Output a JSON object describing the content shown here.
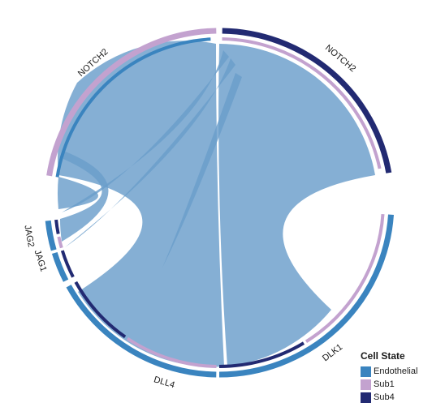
{
  "chart_data": {
    "type": "chord",
    "sectors": [
      {
        "label": "NOTCH2",
        "state": "Sub4"
      },
      {
        "label": "DLK1",
        "state": "Endothelial"
      },
      {
        "label": "DLL4",
        "state": "Endothelial"
      },
      {
        "label": "JAG1",
        "state": "Endothelial"
      },
      {
        "label": "JAG2",
        "state": "Endothelial"
      },
      {
        "label": "NOTCH2",
        "state": "Sub1"
      }
    ],
    "links_note": "ligand (JAG2, JAG1, DLL4, DLK1) to receptor (NOTCH2) interactions",
    "legend": {
      "title": "Cell State",
      "items": [
        {
          "label": "Endothelial",
          "color": "#3a84bf"
        },
        {
          "label": "Sub1",
          "color": "#c3a2cf"
        },
        {
          "label": "Sub4",
          "color": "#222a72"
        }
      ]
    },
    "link_color": "#6a9ecb"
  }
}
